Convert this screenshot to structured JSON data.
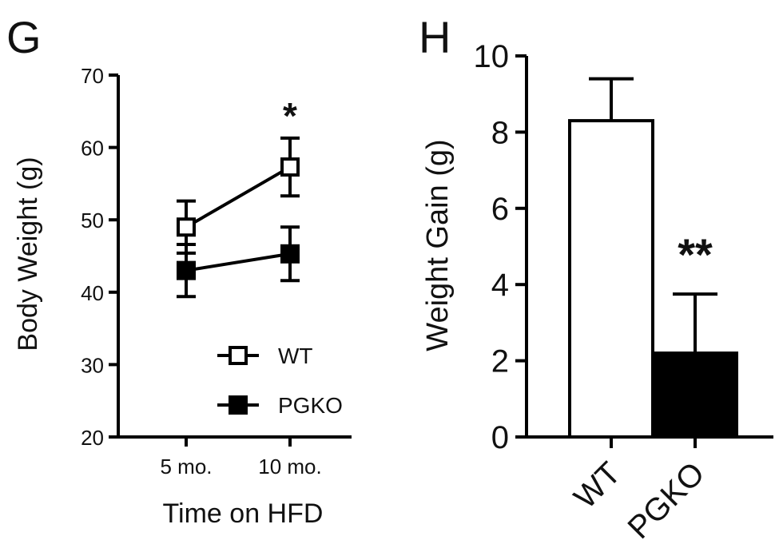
{
  "chart_data": [
    {
      "panel": "G",
      "type": "line",
      "xlabel": "Time on HFD",
      "ylabel": "Body Weight (g)",
      "categories": [
        "5 mo.",
        "10 mo."
      ],
      "ylim": [
        20,
        70
      ],
      "yticks": [
        20,
        30,
        40,
        50,
        60,
        70
      ],
      "grid": false,
      "legend_position": "bottom-right",
      "series": [
        {
          "name": "WT",
          "values": [
            49,
            57.3
          ],
          "error": [
            3.6,
            4.0
          ],
          "marker": "open-square",
          "color": "#000000"
        },
        {
          "name": "PGKO",
          "values": [
            43,
            45.3
          ],
          "error": [
            3.6,
            3.7
          ],
          "marker": "filled-square",
          "color": "#000000"
        }
      ],
      "annotations": [
        {
          "category": "10 mo.",
          "text": "*"
        }
      ]
    },
    {
      "panel": "H",
      "type": "bar",
      "xlabel": "",
      "ylabel": "Weight Gain (g)",
      "categories": [
        "WT",
        "PGKO"
      ],
      "values": [
        8.3,
        2.2
      ],
      "error": [
        1.1,
        1.55
      ],
      "fills": [
        "#ffffff",
        "#000000"
      ],
      "ylim": [
        0,
        10
      ],
      "yticks": [
        0,
        2,
        4,
        6,
        8,
        10
      ],
      "grid": false,
      "annotations": [
        {
          "category": "PGKO",
          "text": "**"
        }
      ]
    }
  ]
}
